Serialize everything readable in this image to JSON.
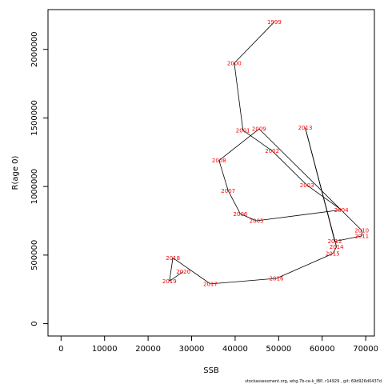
{
  "chart_data": {
    "type": "line",
    "xlabel": "SSB",
    "ylabel": "R(age 0)",
    "xlim": [
      -3000,
      72000
    ],
    "ylim": [
      -90000,
      2290000
    ],
    "x_ticks": [
      0,
      10000,
      20000,
      30000,
      40000,
      50000,
      60000,
      70000
    ],
    "y_ticks": [
      0,
      500000,
      1000000,
      1500000,
      2000000
    ],
    "grid": false,
    "line_color": "#000000",
    "label_color": "#ff0000",
    "points": [
      {
        "year": "1999",
        "x": 49000,
        "y": 2200000
      },
      {
        "year": "2000",
        "x": 39800,
        "y": 1900000
      },
      {
        "year": "2001",
        "x": 41800,
        "y": 1410000
      },
      {
        "year": "2002",
        "x": 48500,
        "y": 1260000
      },
      {
        "year": "2003",
        "x": 56500,
        "y": 1010000
      },
      {
        "year": "2004",
        "x": 64400,
        "y": 830000
      },
      {
        "year": "2005",
        "x": 44900,
        "y": 750000
      },
      {
        "year": "2006",
        "x": 41200,
        "y": 800000
      },
      {
        "year": "2007",
        "x": 38400,
        "y": 970000
      },
      {
        "year": "2008",
        "x": 36300,
        "y": 1190000
      },
      {
        "year": "2009",
        "x": 45500,
        "y": 1420000
      },
      {
        "year": "2010",
        "x": 69100,
        "y": 680000
      },
      {
        "year": "2011",
        "x": 69100,
        "y": 640000
      },
      {
        "year": "2012",
        "x": 62900,
        "y": 600000
      },
      {
        "year": "2013",
        "x": 56100,
        "y": 1430000
      },
      {
        "year": "2014",
        "x": 63300,
        "y": 560000
      },
      {
        "year": "2015",
        "x": 62400,
        "y": 510000
      },
      {
        "year": "2016",
        "x": 49500,
        "y": 330000
      },
      {
        "year": "2017",
        "x": 34300,
        "y": 290000
      },
      {
        "year": "2018",
        "x": 25700,
        "y": 480000
      },
      {
        "year": "2019",
        "x": 24900,
        "y": 310000
      },
      {
        "year": "2020",
        "x": 28100,
        "y": 380000
      }
    ]
  },
  "credit": "stockassessment.org, whg.7b-ce-k_IBP, r14929 , git: 69d926d0437d"
}
